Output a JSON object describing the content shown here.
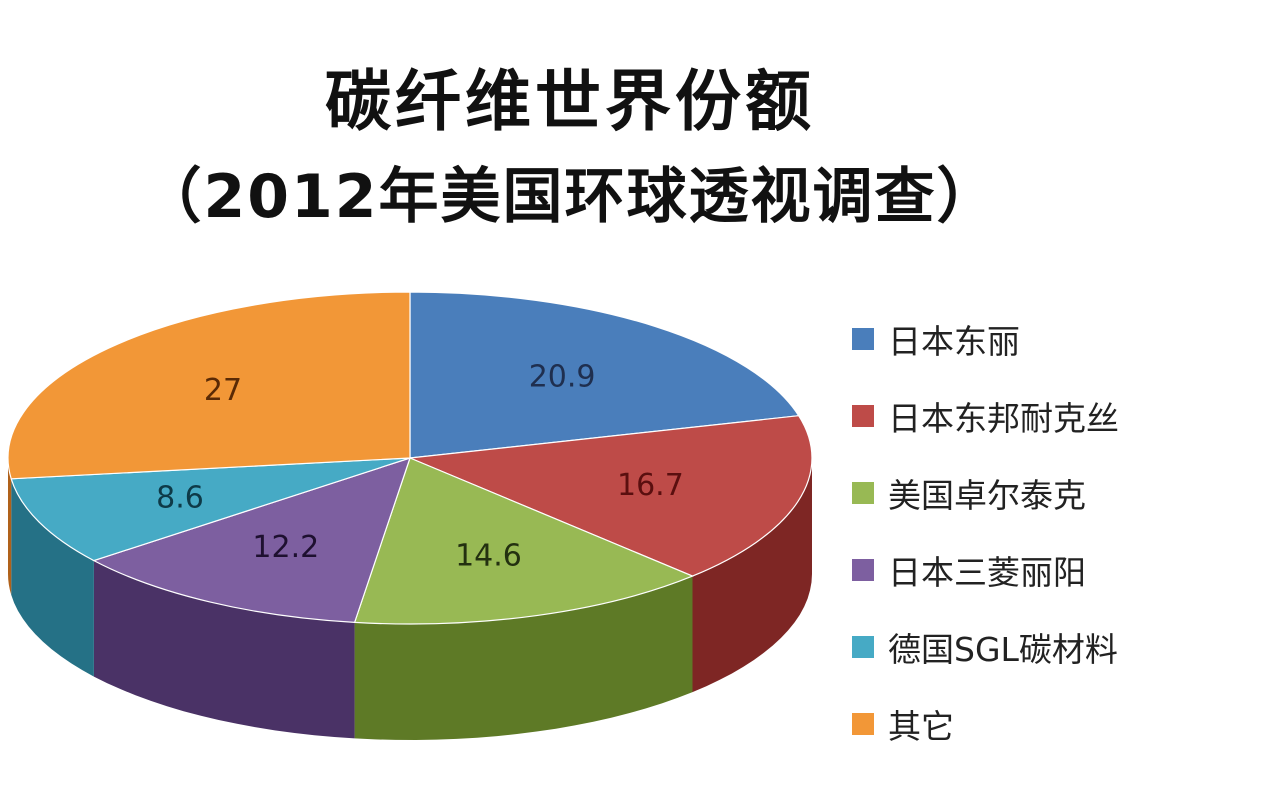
{
  "title": "碳纤维世界份额",
  "subtitle": "（2012年美国环球透视调查）",
  "chart_data": {
    "type": "pie",
    "title": "碳纤维世界份额",
    "subtitle": "（2012年美国环球透视调查）",
    "start_angle_deg": -90,
    "direction": "clockwise",
    "legend_position": "right",
    "slices": [
      {
        "label": "日本东丽",
        "value": 20.9,
        "color": "#4A7EBB",
        "side_color": "#2E5480",
        "label_color": "#1F2F4F"
      },
      {
        "label": "日本东邦耐克丝",
        "value": 16.7,
        "color": "#BE4B48",
        "side_color": "#7E2624",
        "label_color": "#5A0F0F"
      },
      {
        "label": "美国卓尔泰克",
        "value": 14.6,
        "color": "#98B954",
        "side_color": "#5E7A26",
        "label_color": "#233010"
      },
      {
        "label": "日本三菱丽阳",
        "value": 12.2,
        "color": "#7D5FA0",
        "side_color": "#4A3266",
        "label_color": "#1E1030"
      },
      {
        "label": "德国SGL碳材料",
        "value": 8.6,
        "color": "#46AAC5",
        "side_color": "#257186",
        "label_color": "#0E3A48"
      },
      {
        "label": "其它",
        "value": 27,
        "color": "#F29737",
        "side_color": "#B0611A",
        "label_color": "#5A2A05"
      }
    ]
  }
}
